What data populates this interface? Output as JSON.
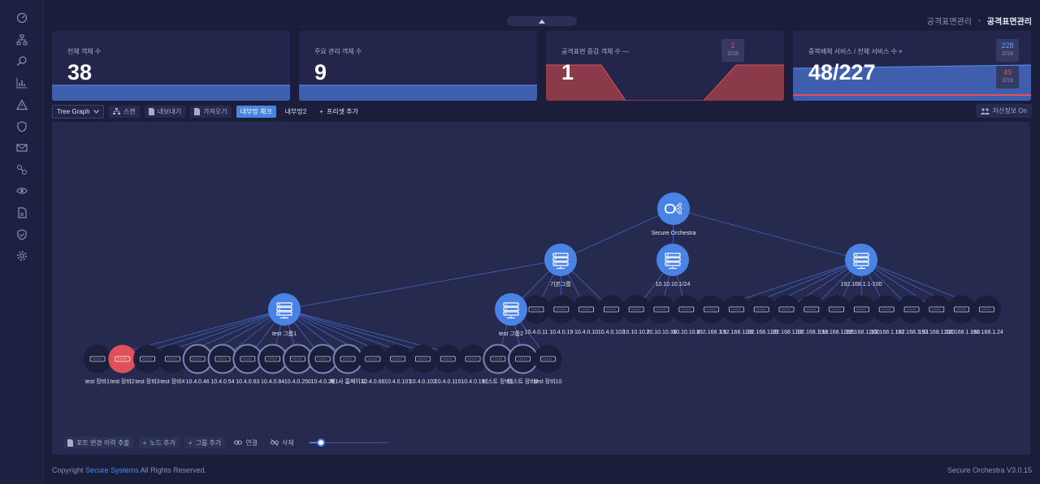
{
  "breadcrumb": {
    "parent": "공격표면관리",
    "current": "공격표면관리"
  },
  "sidebar": {
    "icons": [
      "dashboard-icon",
      "sitemap-icon",
      "search-icon",
      "chart-icon",
      "warning-icon",
      "shield-icon",
      "mail-icon",
      "link-icon",
      "eye-icon",
      "report-icon",
      "shield-check-icon",
      "gear-icon"
    ]
  },
  "cards": {
    "total": {
      "label": "전체 객체 수",
      "value": "38"
    },
    "managed": {
      "label": "주요 관리 객체 수",
      "value": "9"
    },
    "change": {
      "label": "공격표면 증감 객체 수",
      "suffix": "—",
      "value": "1",
      "mini_num": "1",
      "mini_date": "2/18"
    },
    "dedup": {
      "label": "중복배제 서비스 / 전체 서비스 수",
      "value": "48/227",
      "mini1_num": "228",
      "mini1_date": "2/19",
      "mini2_num": "49",
      "mini2_date": "2/19"
    }
  },
  "toolbar": {
    "select_value": "Tree Graph",
    "scan": "스캔",
    "export": "내보내기",
    "import": "가져오기",
    "internal_check": "내부망 체크",
    "internal2": "내부망2",
    "add_preset": "프리셋 추가",
    "asset_info": "자산정보 On"
  },
  "graph": {
    "root": {
      "label": "Secure Orchestra"
    },
    "groups": [
      {
        "label": "기본그룹"
      },
      {
        "label": "10.10.10.1/24"
      },
      {
        "label": "192.168.1.1-100"
      },
      {
        "label": "test 그룹1"
      },
      {
        "label": "test 그룹2"
      }
    ],
    "row1_labels": [
      "10.4.0.11",
      "10.4.0.19",
      "10.4.0.10",
      "10.4.0.102",
      "10.10.10.2",
      "10.10.10.30",
      "10.10.10.8",
      "192.168.1.1",
      "192.168.1.13",
      "192.168.1.15",
      "192.168.1.17",
      "192.168.1.19",
      "192.168.1.195",
      "192.168.1.100",
      "192.168.1.107",
      "192.168.1.93",
      "192.168.1.120",
      "192.168.1.180",
      "192.168.1.24"
    ],
    "row2_labels": [
      "test 장비1",
      "test 장비2",
      "test 장비3",
      "test 장비4",
      "10.4.0.46",
      "10.4.0.54",
      "10.4.0.63",
      "10.4.0.84",
      "10.4.0.250",
      "10.4.0.28",
      "제1사 홈페이지",
      "10.4.0.66",
      "10.4.0.101",
      "10.4.0.102",
      "10.4.0.115",
      "10.4.0.19",
      "테스트 장비1",
      "테스트 장비2",
      "test 장비10"
    ]
  },
  "bottom_tools": {
    "port_history": "포트 변경 이력 추출",
    "add_node": "노드 추가",
    "add_group": "그룹 추가",
    "connect": "연결",
    "delete": "삭제",
    "zoom_level": 0.15
  },
  "footer": {
    "copyright_prefix": "Copyright",
    "brand": "Secure Systems",
    "copyright_suffix": "All Rights Reserved.",
    "version": "Secure Orchestra V3.0.15"
  },
  "colors": {
    "accent": "#4a83e6",
    "danger": "#e0505a",
    "bg": "#1b1e3a"
  }
}
